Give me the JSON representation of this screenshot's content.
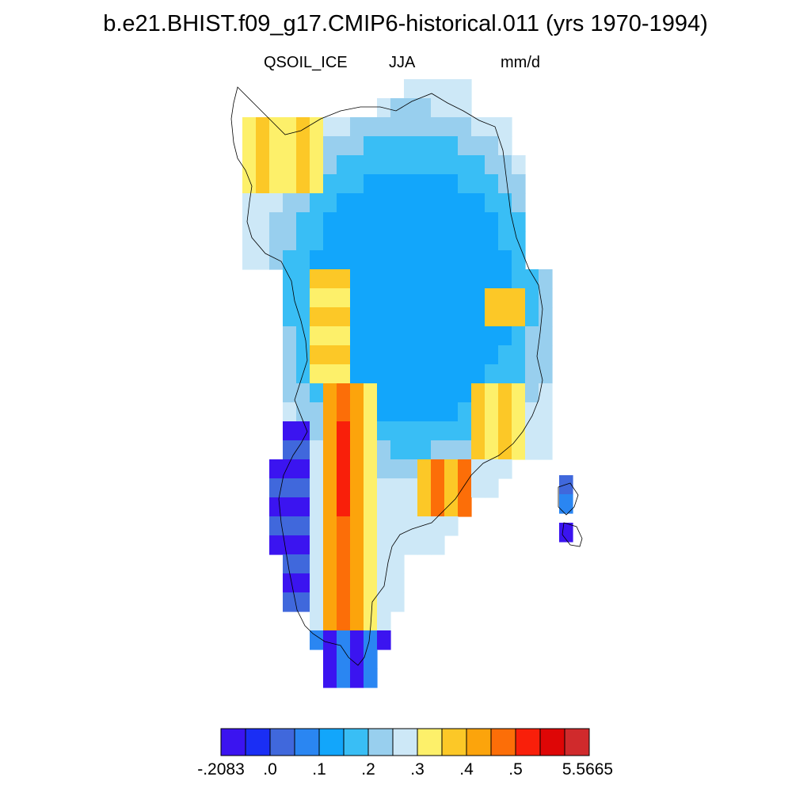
{
  "header": {
    "title": "b.e21.BHIST.f09_g17.CMIP6-historical.011 (yrs 1970-1994)",
    "variable": "QSOIL_ICE",
    "season": "JJA",
    "units": "mm/d"
  },
  "colorbar": {
    "colors": [
      "#3b14f0",
      "#1a2ef5",
      "#4068dc",
      "#2a86f2",
      "#12a6fb",
      "#39bef5",
      "#98cfee",
      "#cde8f7",
      "#fdf06a",
      "#fcc827",
      "#fca40c",
      "#fc6e08",
      "#f91f0a",
      "#de0606",
      "#d02a2c"
    ],
    "labels": [
      "-.2083",
      ".0",
      ".1",
      ".2",
      ".3",
      ".4",
      ".5",
      "5.5665"
    ]
  },
  "map": {
    "region": "Greenland",
    "field_levels_legend": "colour index per grid cell uses colorbar colors 0-14"
  }
}
